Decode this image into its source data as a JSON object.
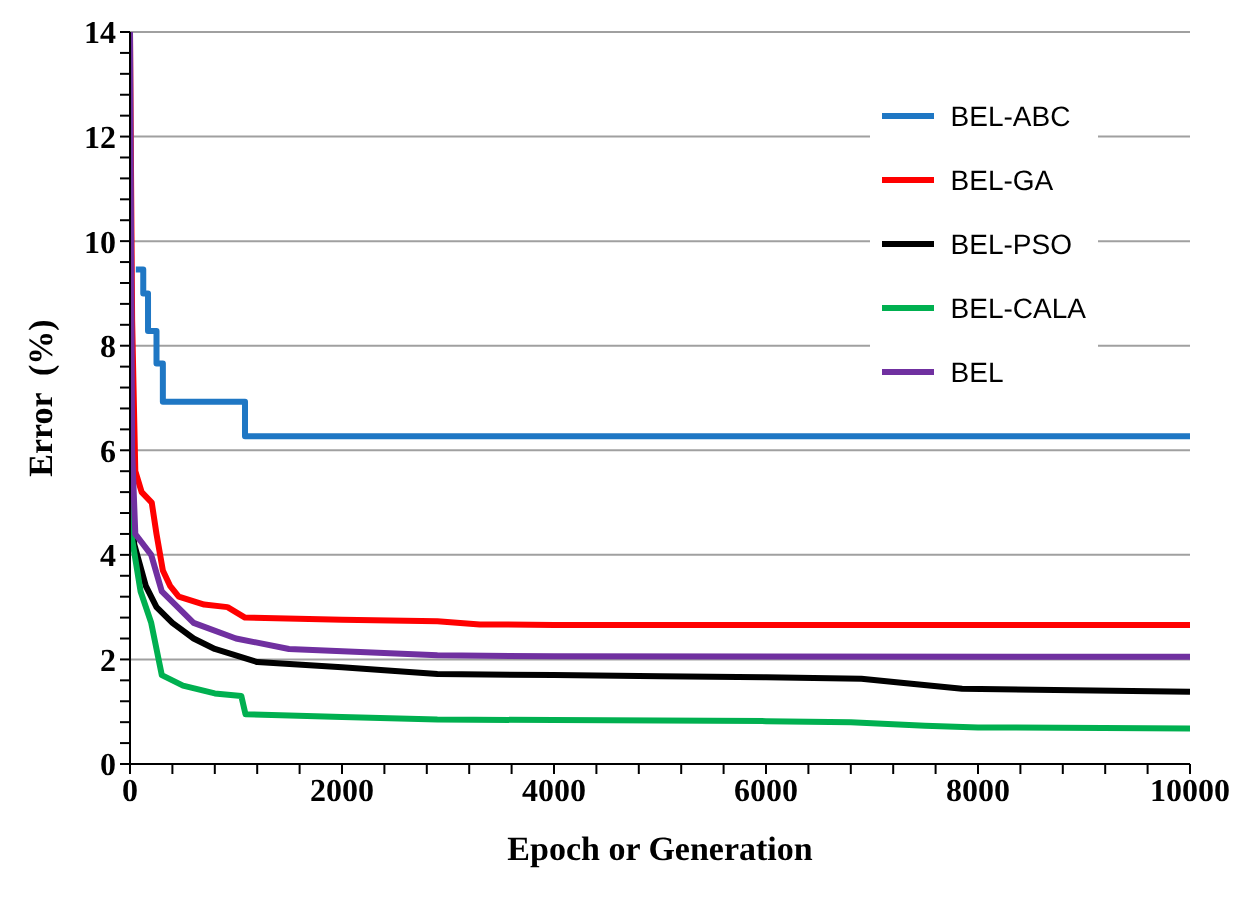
{
  "chart_data": {
    "type": "line",
    "xlabel": "Epoch or Generation",
    "ylabel": "Error  (%)",
    "xlim": [
      0,
      10000
    ],
    "ylim": [
      0,
      14
    ],
    "xticks": [
      0,
      {
        "value": 400,
        "label": null
      },
      {
        "value": 800,
        "label": null
      },
      {
        "value": 1200,
        "label": null
      },
      {
        "value": 1600,
        "label": null
      },
      2000,
      {
        "value": 2400,
        "label": null
      },
      {
        "value": 2800,
        "label": null
      },
      {
        "value": 3200,
        "label": null
      },
      {
        "value": 3600,
        "label": null
      },
      4000,
      {
        "value": 4400,
        "label": null
      },
      {
        "value": 4800,
        "label": null
      },
      {
        "value": 5200,
        "label": null
      },
      {
        "value": 5600,
        "label": null
      },
      6000,
      {
        "value": 6400,
        "label": null
      },
      {
        "value": 6800,
        "label": null
      },
      {
        "value": 7200,
        "label": null
      },
      {
        "value": 7600,
        "label": null
      },
      8000,
      {
        "value": 8400,
        "label": null
      },
      {
        "value": 8800,
        "label": null
      },
      {
        "value": 9200,
        "label": null
      },
      {
        "value": 9600,
        "label": null
      },
      10000
    ],
    "yticks": [
      0,
      {
        "value": 0.4,
        "label": null
      },
      {
        "value": 0.8,
        "label": null
      },
      {
        "value": 1.2,
        "label": null
      },
      {
        "value": 1.6,
        "label": null
      },
      2,
      {
        "value": 2.4,
        "label": null
      },
      {
        "value": 2.8,
        "label": null
      },
      {
        "value": 3.2,
        "label": null
      },
      {
        "value": 3.6,
        "label": null
      },
      4,
      {
        "value": 4.4,
        "label": null
      },
      {
        "value": 4.8,
        "label": null
      },
      {
        "value": 5.2,
        "label": null
      },
      {
        "value": 5.6,
        "label": null
      },
      6,
      {
        "value": 6.4,
        "label": null
      },
      {
        "value": 6.8,
        "label": null
      },
      {
        "value": 7.2,
        "label": null
      },
      {
        "value": 7.6,
        "label": null
      },
      8,
      {
        "value": 8.4,
        "label": null
      },
      {
        "value": 8.8,
        "label": null
      },
      {
        "value": 9.2,
        "label": null
      },
      {
        "value": 9.6,
        "label": null
      },
      10,
      {
        "value": 10.4,
        "label": null
      },
      {
        "value": 10.8,
        "label": null
      },
      {
        "value": 11.2,
        "label": null
      },
      {
        "value": 11.6,
        "label": null
      },
      12,
      {
        "value": 12.4,
        "label": null
      },
      {
        "value": 12.8,
        "label": null
      },
      {
        "value": 13.2,
        "label": null
      },
      {
        "value": 13.6,
        "label": null
      },
      14
    ],
    "grid": "y",
    "legend": "top right",
    "marker": "none",
    "line_style": "solid",
    "series": [
      {
        "name": "BEL-ABC",
        "color": "#1f77c4",
        "type": "step",
        "x": [
          55,
          125,
          170,
          250,
          310,
          1085,
          10000
        ],
        "values": [
          9.46,
          9.0,
          8.28,
          7.66,
          6.93,
          6.27,
          6.27
        ]
      },
      {
        "name": "BEL-GA",
        "color": "#ff0000",
        "x": [
          0,
          20,
          50,
          110,
          205,
          250,
          310,
          380,
          460,
          700,
          920,
          1085,
          2000,
          2900,
          3300,
          4000,
          10000
        ],
        "values": [
          14,
          8.5,
          5.6,
          5.2,
          5.0,
          4.4,
          3.7,
          3.4,
          3.2,
          3.05,
          3.0,
          2.8,
          2.76,
          2.73,
          2.67,
          2.66,
          2.66
        ]
      },
      {
        "name": "BEL-PSO",
        "color": "#000000",
        "x": [
          0,
          20,
          40,
          150,
          250,
          400,
          600,
          800,
          1200,
          2000,
          2900,
          4000,
          5000,
          6000,
          6900,
          7300,
          7850,
          10000
        ],
        "values": [
          7,
          5.2,
          4.2,
          3.4,
          3.0,
          2.7,
          2.4,
          2.2,
          1.95,
          1.85,
          1.72,
          1.7,
          1.68,
          1.66,
          1.63,
          1.55,
          1.44,
          1.38
        ]
      },
      {
        "name": "BEL-CALA",
        "color": "#00b050",
        "x": [
          0,
          20,
          100,
          200,
          240,
          300,
          500,
          800,
          1050,
          1090,
          2000,
          2900,
          4000,
          6000,
          6800,
          7500,
          8000,
          10000
        ],
        "values": [
          6,
          4.3,
          3.3,
          2.7,
          2.3,
          1.7,
          1.5,
          1.35,
          1.3,
          0.95,
          0.9,
          0.85,
          0.84,
          0.82,
          0.8,
          0.73,
          0.7,
          0.68
        ]
      },
      {
        "name": "BEL",
        "color": "#7030a0",
        "x": [
          0,
          20,
          50,
          200,
          300,
          600,
          1000,
          1500,
          2900,
          4000,
          10000
        ],
        "values": [
          14,
          6,
          4.4,
          4.0,
          3.3,
          2.7,
          2.4,
          2.2,
          2.08,
          2.06,
          2.05
        ]
      }
    ]
  }
}
